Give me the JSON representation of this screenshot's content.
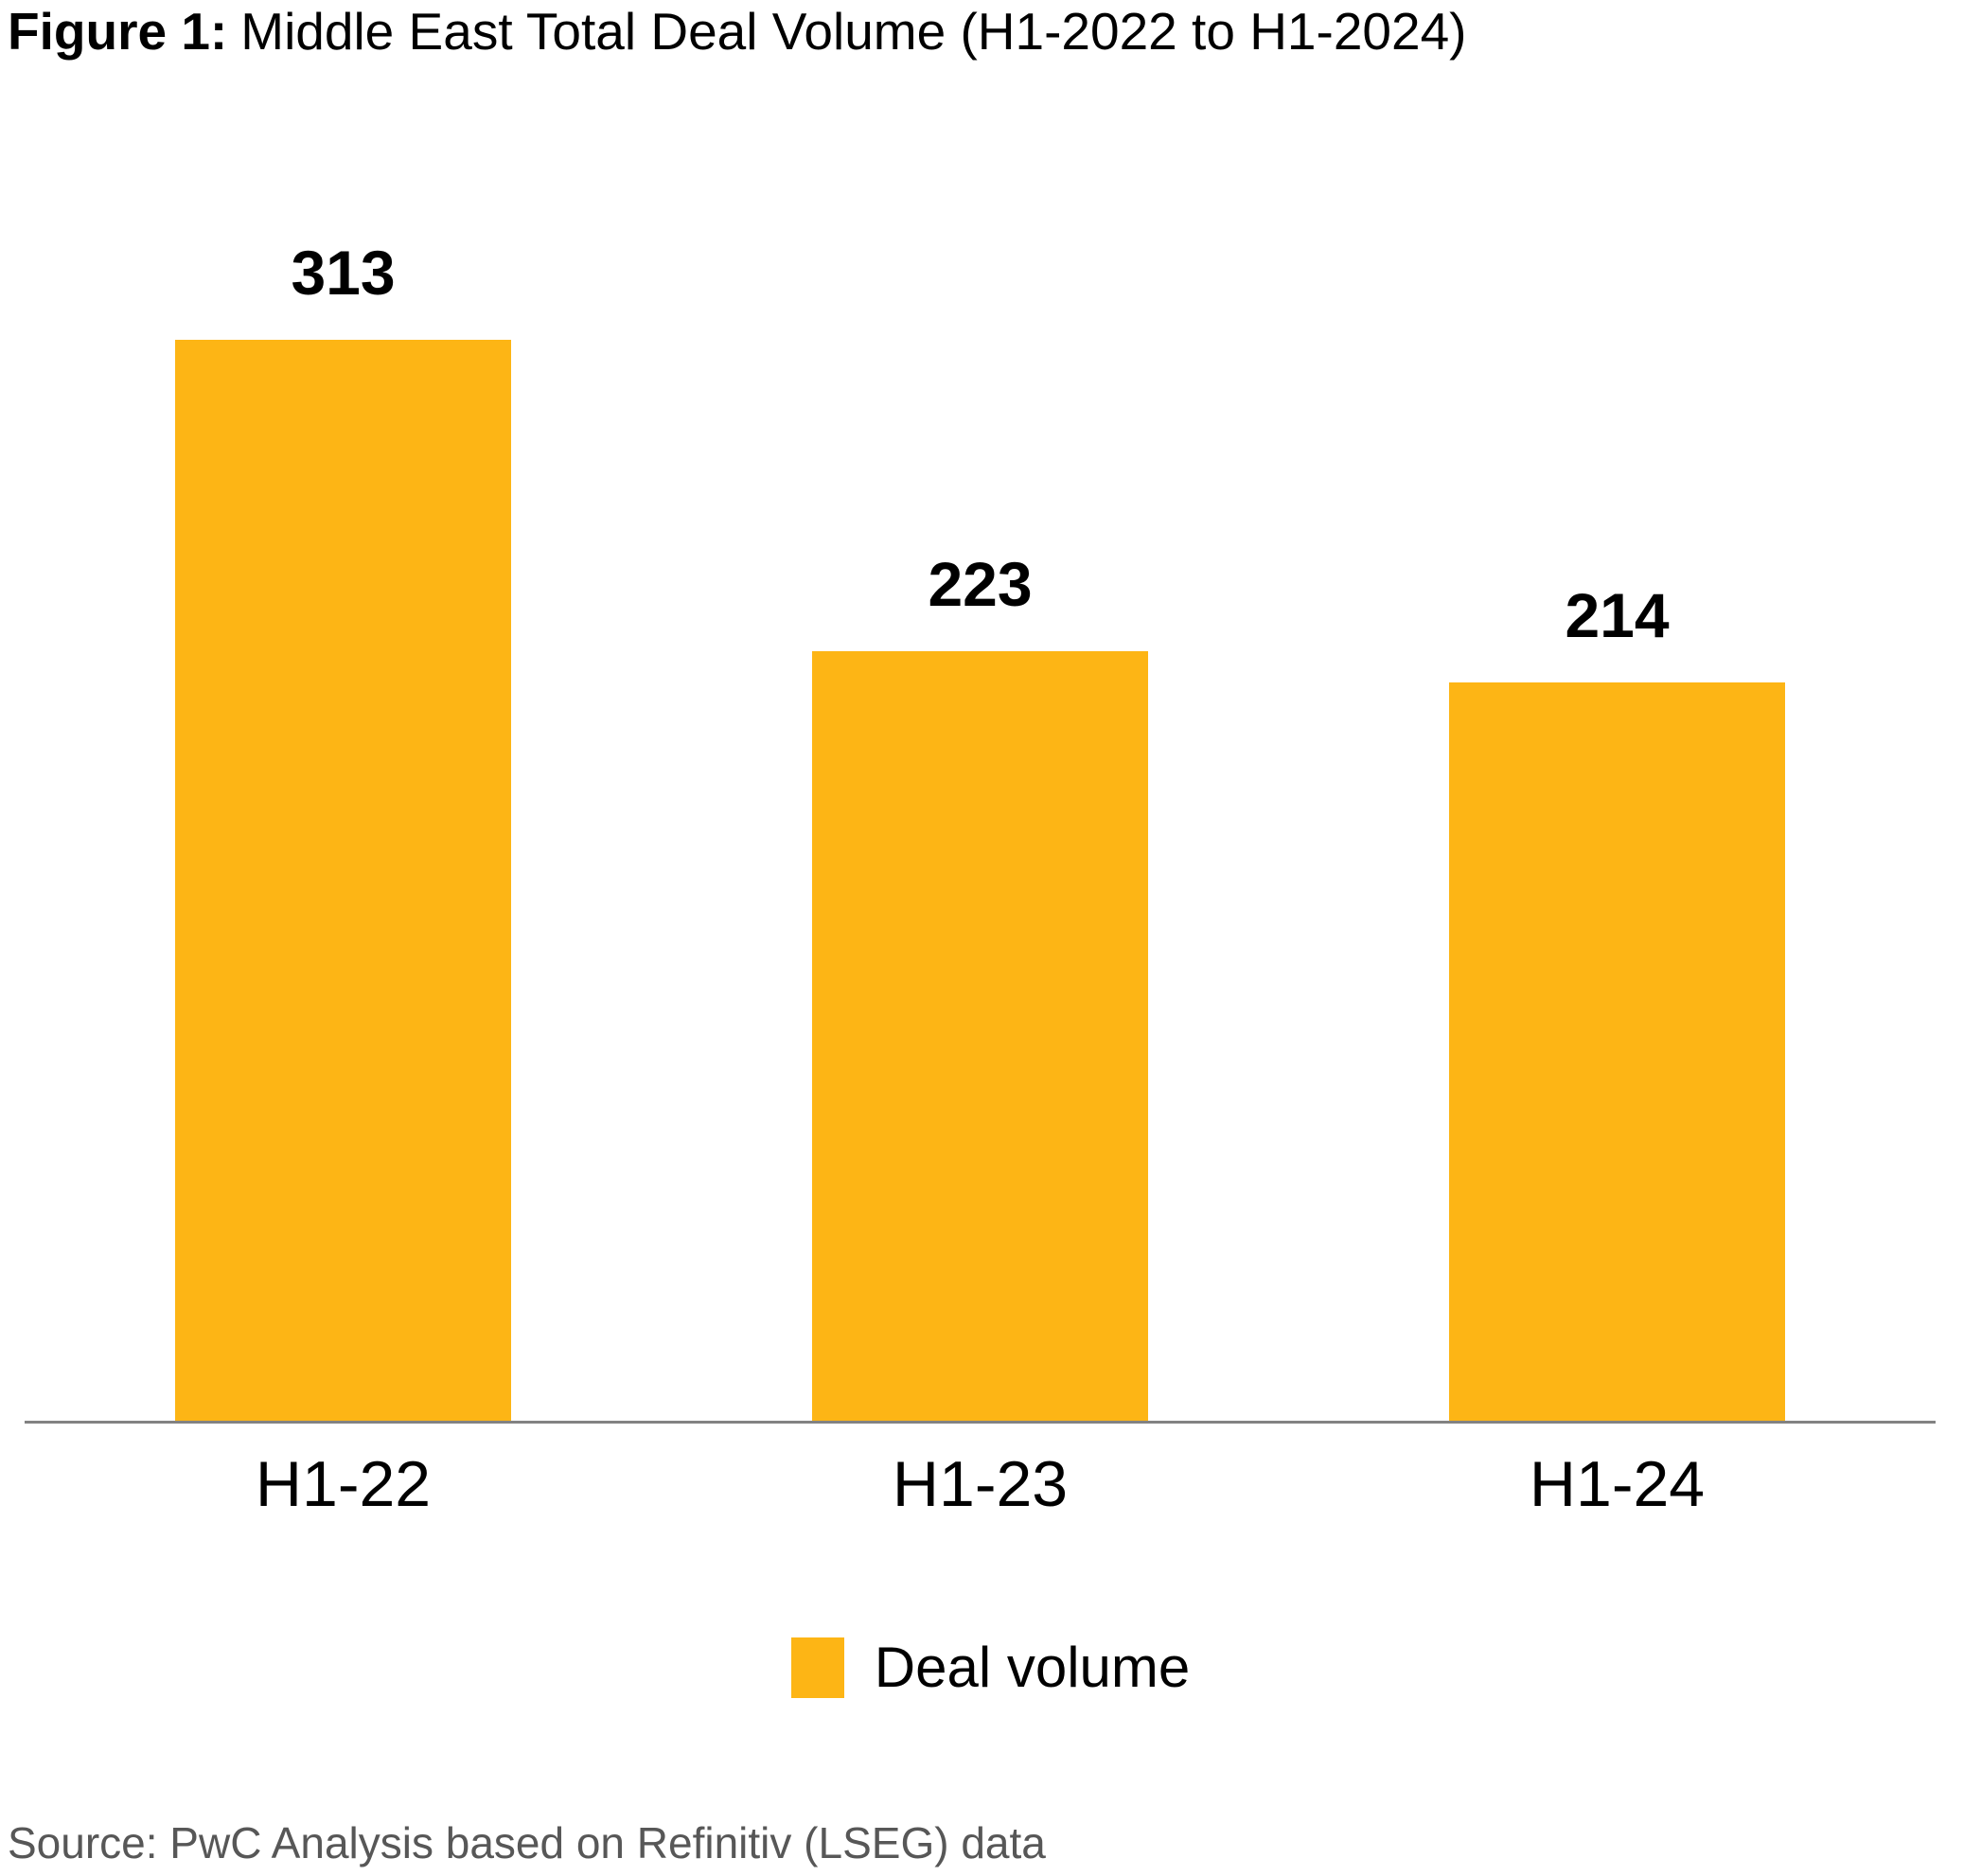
{
  "title": {
    "prefix": "Figure 1:",
    "text": "Middle East Total Deal Volume (H1-2022 to H1-2024)"
  },
  "legend": {
    "label": "Deal volume"
  },
  "source": "Source: PwC Analysis based on Refinitiv (LSEG) data",
  "colors": {
    "bar": "#FDB515",
    "axis_line": "#828282",
    "text": "#000000",
    "source_text": "#575757"
  },
  "chart_data": {
    "type": "bar",
    "categories": [
      "H1-22",
      "H1-23",
      "H1-24"
    ],
    "series": [
      {
        "name": "Deal volume",
        "values": [
          313,
          223,
          214
        ]
      }
    ],
    "data_labels": [
      313,
      223,
      214
    ],
    "title": "Figure 1: Middle East Total Deal Volume (H1-2022 to H1-2024)",
    "xlabel": "",
    "ylabel": "",
    "ylim": [
      0,
      345
    ],
    "grid": false,
    "legend_position": "bottom",
    "bar_color": "#FDB515"
  }
}
